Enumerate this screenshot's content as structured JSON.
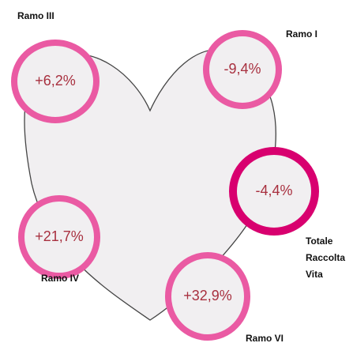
{
  "nodes": [
    {
      "label": "Ramo III",
      "value": "+6,2%"
    },
    {
      "label": "Ramo I",
      "value": "-9,4%"
    },
    {
      "label": "Totale Raccolta Vita",
      "value": "-4,4%"
    },
    {
      "label": "Ramo IV",
      "value": "+21,7%"
    },
    {
      "label": "Ramo VI",
      "value": "+32,9%"
    }
  ]
}
